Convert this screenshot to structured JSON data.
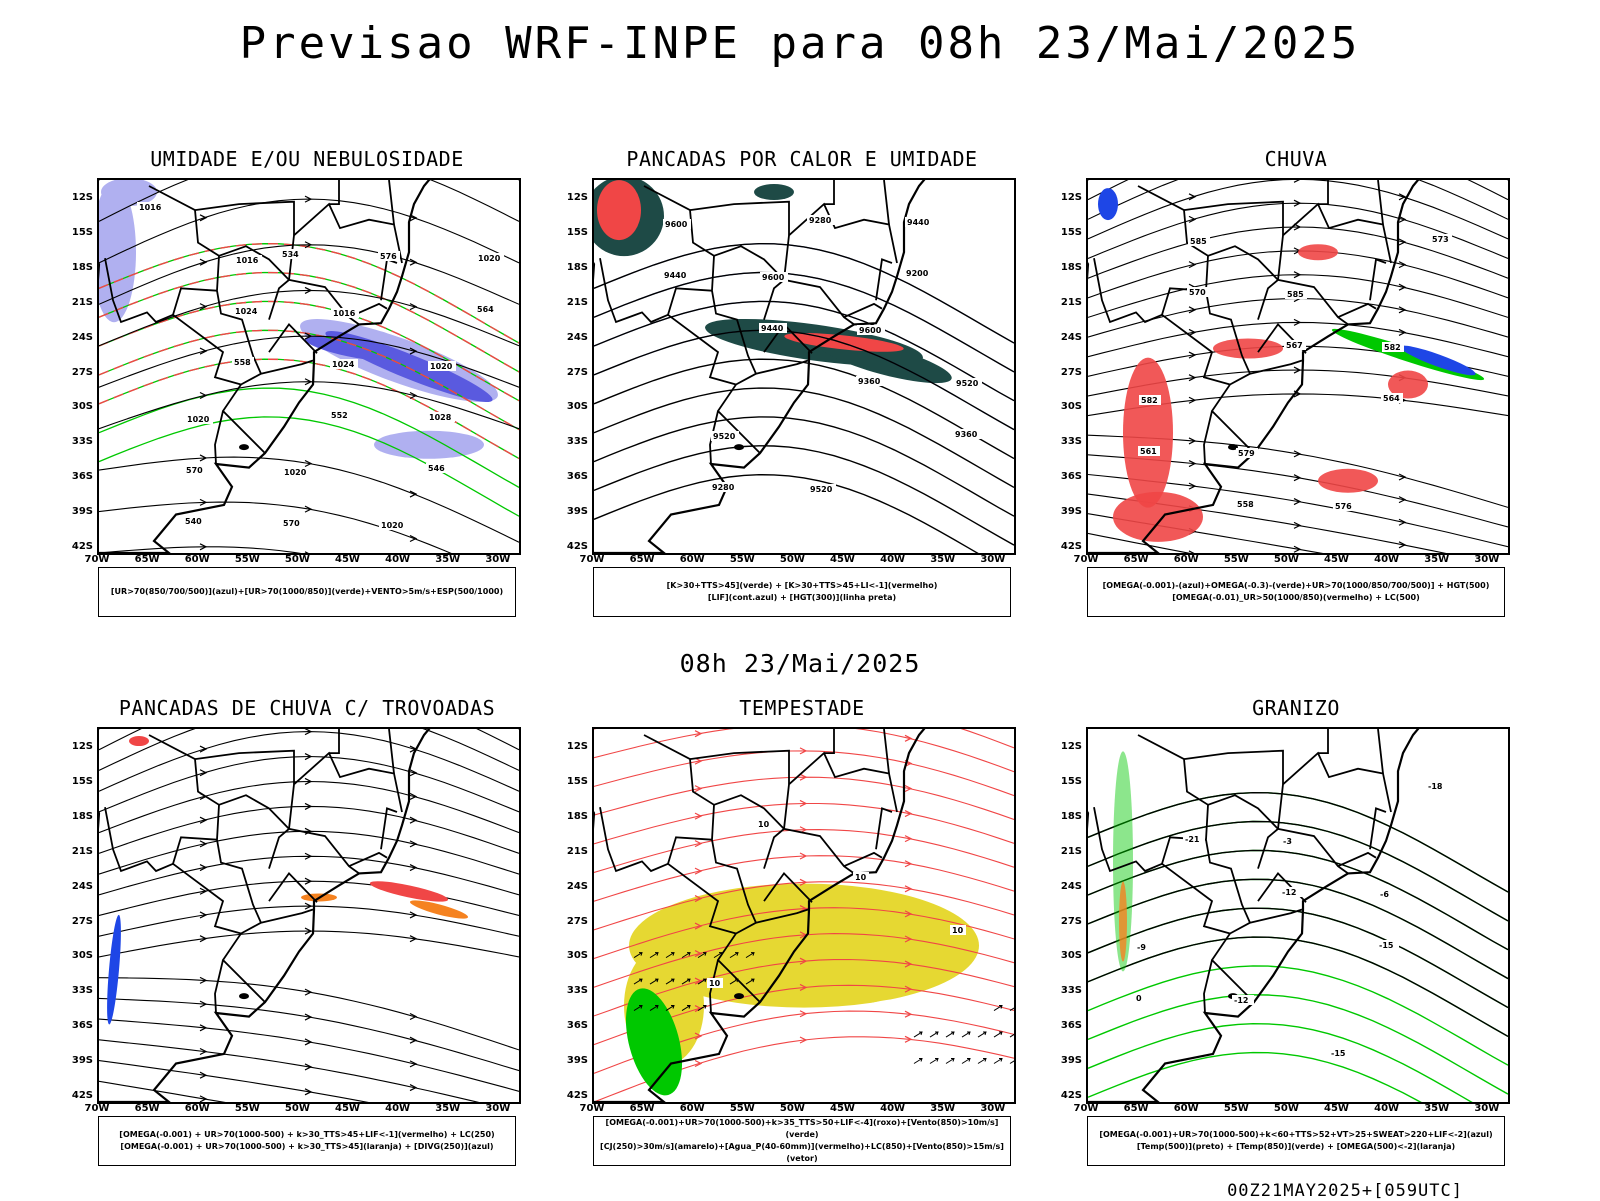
{
  "title": "Previsao WRF-INPE  para 08h 23/Mai/2025",
  "mid_title": "08h 23/Mai/2025",
  "footer": "00Z21MAY2025+[059UTC]",
  "lat_labels": [
    "12S",
    "15S",
    "18S",
    "21S",
    "24S",
    "27S",
    "30S",
    "33S",
    "36S",
    "39S",
    "42S"
  ],
  "lon_labels": [
    "70W",
    "65W",
    "60W",
    "55W",
    "50W",
    "45W",
    "40W",
    "35W",
    "30W"
  ],
  "panels": [
    {
      "title": "UMIDADE E/OU NEBULOSIDADE",
      "legend": [
        "[UR>70(850/700/500)](azul)+[UR>70(1000/850)](verde)+VENTO>5m/s+ESP(500/1000)"
      ],
      "contour_labels": [
        "1016",
        "1016",
        "1016",
        "1020",
        "1020",
        "1020",
        "1020",
        "1020",
        "1024",
        "1024",
        "1028",
        "570",
        "570",
        "576",
        "564",
        "558",
        "552",
        "546",
        "540",
        "534"
      ]
    },
    {
      "title": "PANCADAS POR CALOR E UMIDADE",
      "legend": [
        "[K>30+TTS>45](verde) + [K>30+TTS>45+LI<-1](vermelho)",
        "[LIF](cont.azul) + [HGT(300)](linha preta)"
      ],
      "contour_labels": [
        "9600",
        "9600",
        "9600",
        "9520",
        "9520",
        "9520",
        "9440",
        "9440",
        "9440",
        "9360",
        "9360",
        "9280",
        "9280",
        "9200"
      ]
    },
    {
      "title": "CHUVA",
      "legend": [
        "[OMEGA(-0.001)-(azul)+OMEGA(-0.3)-(verde)+UR>70(1000/850/700/500)] + HGT(500)",
        "[OMEGA(-0.01)_UR>50(1000/850)(vermelho) + LC(500)"
      ],
      "contour_labels": [
        "585",
        "585",
        "582",
        "582",
        "579",
        "576",
        "573",
        "570",
        "567",
        "564",
        "561",
        "558"
      ]
    },
    {
      "title": "PANCADAS DE CHUVA C/ TROVOADAS",
      "legend": [
        "[OMEGA(-0.001) + UR>70(1000-500) + k>30_TTS>45+LIF<-1](vermelho) + LC(250)",
        "[OMEGA(-0.001) + UR>70(1000-500) + k>30_TTS>45](laranja) + [DIVG(250)](azul)"
      ],
      "contour_labels": []
    },
    {
      "title": "TEMPESTADE",
      "legend": [
        "[OMEGA(-0.001)+UR>70(1000-500)+k>35_TTS>50+LIF<-4](roxo)+[Vento(850)>10m/s](verde)",
        "[CJ(250)>30m/s](amarelo)+[Agua_P(40-60mm)](vermelho)+LC(850)+[Vento(850)>15m/s](vetor)"
      ],
      "contour_labels": [
        "10",
        "10",
        "10",
        "10"
      ]
    },
    {
      "title": "GRANIZO",
      "legend": [
        "[OMEGA(-0.001)+UR>70(1000-500)+k<60+TTS>52+VT>25+SWEAT>220+LIF<-2](azul)",
        "[Temp(500)](preto) + [Temp(850)](verde) + [OMEGA(500)<-2](laranja)"
      ],
      "contour_labels": [
        "-3",
        "-6",
        "-9",
        "-12",
        "-15",
        "-18",
        "-21",
        "-12",
        "-15",
        "0"
      ]
    }
  ],
  "colors": {
    "humidity_blue": "#5a5adf",
    "humidity_light": "#b0b0f0",
    "green": "#00c800",
    "red": "#f04646",
    "dark_teal": "#1e4a46",
    "yellow": "#e6d832",
    "orange": "#f58220",
    "blue": "#1e46e6",
    "black": "#000000"
  }
}
